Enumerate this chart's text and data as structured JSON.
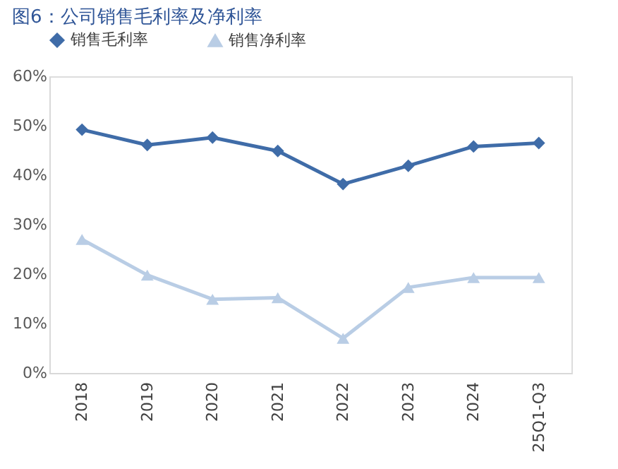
{
  "chart_data": {
    "type": "line",
    "title": "图6：公司销售毛利率及净利率",
    "categories": [
      "2018",
      "2019",
      "2020",
      "2021",
      "2022",
      "2023",
      "2024",
      "25Q1-Q3"
    ],
    "series": [
      {
        "name": "销售毛利率",
        "color": "#3f6ca8",
        "marker": "diamond",
        "values": [
          49.2,
          46.1,
          47.6,
          44.9,
          38.2,
          41.9,
          45.8,
          46.5
        ]
      },
      {
        "name": "销售净利率",
        "color": "#b9cde5",
        "marker": "triangle",
        "values": [
          27.0,
          19.8,
          14.9,
          15.2,
          7.0,
          17.3,
          19.3,
          19.3
        ]
      }
    ],
    "ylim": [
      0,
      60
    ],
    "yticks": [
      {
        "value": 0,
        "label": "0%"
      },
      {
        "value": 10,
        "label": "10%"
      },
      {
        "value": 20,
        "label": "20%"
      },
      {
        "value": 30,
        "label": "30%"
      },
      {
        "value": 40,
        "label": "40%"
      },
      {
        "value": 50,
        "label": "50%"
      },
      {
        "value": 60,
        "label": "60%"
      }
    ],
    "legend": "top",
    "grid": false,
    "line_style": "solid"
  }
}
